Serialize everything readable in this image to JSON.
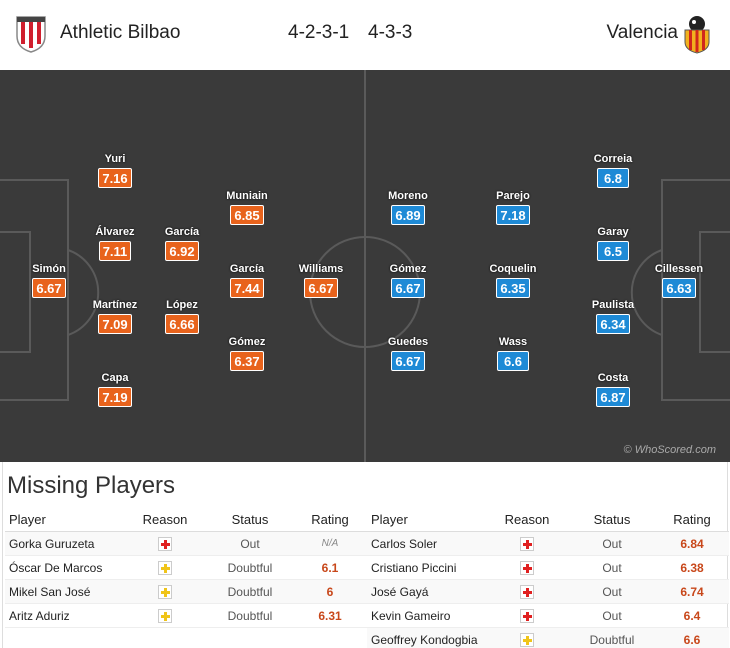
{
  "header": {
    "home_team": "Athletic Bilbao",
    "away_team": "Valencia",
    "home_formation": "4-2-3-1",
    "away_formation": "4-3-3"
  },
  "colors": {
    "home_rating_bg": "#e8631c",
    "away_rating_bg": "#1e8ad6",
    "pitch": "#3a3a3a",
    "injury_red": "#e02020",
    "doubtful_yellow": "#f0c419"
  },
  "pitch": {
    "watermark": "© WhoScored.com",
    "home_players": [
      {
        "name": "Yuri",
        "rating": "7.16"
      },
      {
        "name": "Álvarez",
        "rating": "7.11"
      },
      {
        "name": "García",
        "rating": "6.92"
      },
      {
        "name": "Muniain",
        "rating": "6.85"
      },
      {
        "name": "Simón",
        "rating": "6.67"
      },
      {
        "name": "García",
        "rating": "7.44"
      },
      {
        "name": "Williams",
        "rating": "6.67"
      },
      {
        "name": "Martínez",
        "rating": "7.09"
      },
      {
        "name": "López",
        "rating": "6.66"
      },
      {
        "name": "Gómez",
        "rating": "6.37"
      },
      {
        "name": "Capa",
        "rating": "7.19"
      }
    ],
    "away_players": [
      {
        "name": "Correia",
        "rating": "6.8"
      },
      {
        "name": "Moreno",
        "rating": "6.89"
      },
      {
        "name": "Parejo",
        "rating": "7.18"
      },
      {
        "name": "Garay",
        "rating": "6.5"
      },
      {
        "name": "Gómez",
        "rating": "6.67"
      },
      {
        "name": "Coquelin",
        "rating": "6.35"
      },
      {
        "name": "Cillessen",
        "rating": "6.63"
      },
      {
        "name": "Paulista",
        "rating": "6.34"
      },
      {
        "name": "Guedes",
        "rating": "6.67"
      },
      {
        "name": "Wass",
        "rating": "6.6"
      },
      {
        "name": "Costa",
        "rating": "6.87"
      }
    ]
  },
  "missing": {
    "title": "Missing Players",
    "columns": {
      "player": "Player",
      "reason": "Reason",
      "status": "Status",
      "rating": "Rating"
    },
    "home": [
      {
        "player": "Gorka Guruzeta",
        "reason": "injury",
        "status": "Out",
        "rating": "N/A"
      },
      {
        "player": "Óscar De Marcos",
        "reason": "doubtful",
        "status": "Doubtful",
        "rating": "6.1"
      },
      {
        "player": "Mikel San José",
        "reason": "doubtful",
        "status": "Doubtful",
        "rating": "6"
      },
      {
        "player": "Aritz Aduriz",
        "reason": "doubtful",
        "status": "Doubtful",
        "rating": "6.31"
      }
    ],
    "away": [
      {
        "player": "Carlos Soler",
        "reason": "injury",
        "status": "Out",
        "rating": "6.84"
      },
      {
        "player": "Cristiano Piccini",
        "reason": "injury",
        "status": "Out",
        "rating": "6.38"
      },
      {
        "player": "José Gayá",
        "reason": "injury",
        "status": "Out",
        "rating": "6.74"
      },
      {
        "player": "Kevin Gameiro",
        "reason": "injury",
        "status": "Out",
        "rating": "6.4"
      },
      {
        "player": "Geoffrey Kondogbia",
        "reason": "doubtful",
        "status": "Doubtful",
        "rating": "6.6"
      }
    ]
  }
}
